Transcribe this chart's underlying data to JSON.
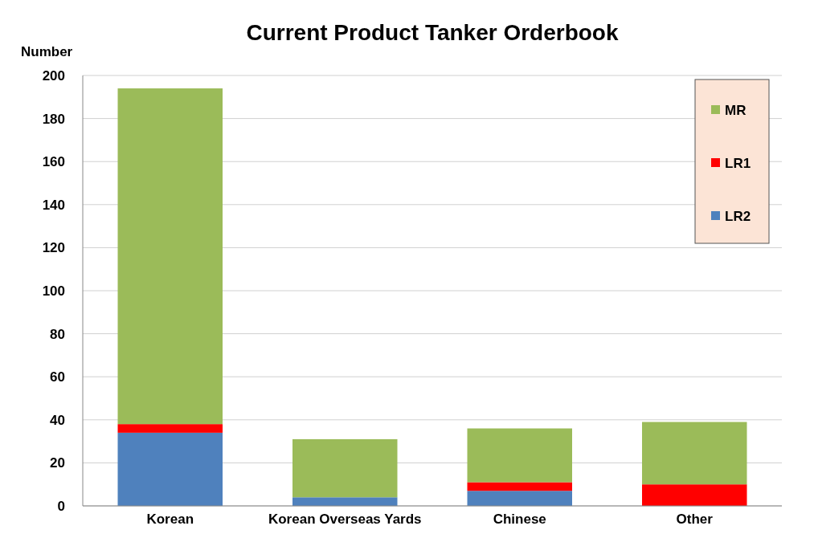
{
  "chart_data": {
    "type": "bar",
    "title": "Current Product Tanker Orderbook",
    "ylabel": "Number",
    "categories": [
      "Korean",
      "Korean Overseas Yards",
      "Chinese",
      "Other"
    ],
    "stacked": true,
    "series": [
      {
        "name": "LR2",
        "color": "#4f81bd",
        "values": [
          34,
          4,
          7,
          0
        ]
      },
      {
        "name": "LR1",
        "color": "#ff0000",
        "values": [
          4,
          0,
          4,
          10
        ]
      },
      {
        "name": "MR",
        "color": "#9bbb59",
        "values": [
          156,
          27,
          25,
          29
        ]
      }
    ],
    "ylim": [
      0,
      200
    ],
    "yticks": [
      0,
      20,
      40,
      60,
      80,
      100,
      120,
      140,
      160,
      180,
      200
    ],
    "grid": "y",
    "legend": "top right"
  }
}
